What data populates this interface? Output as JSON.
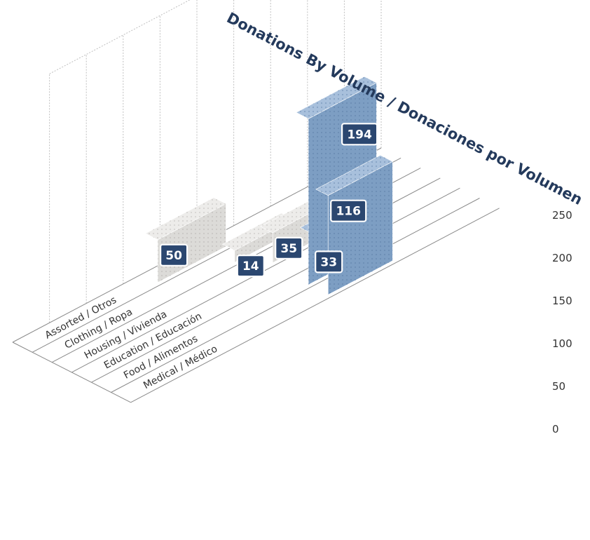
{
  "chart_data": {
    "type": "bar",
    "title": "Donations By Volume / Donaciones por Volumen",
    "categories": [
      "Assorted / Otros",
      "Clothing / Ropa",
      "Housing / Vivienda",
      "Education / Educación",
      "Food / Alimentos",
      "Medical / Médico"
    ],
    "values": [
      50,
      14,
      35,
      33,
      194,
      116
    ],
    "data_labels": [
      "50",
      "14",
      "35",
      "33",
      "194",
      "116"
    ],
    "yticks": [
      "0",
      "50",
      "100",
      "150",
      "200",
      "250"
    ],
    "ylim": [
      0,
      250
    ],
    "grid": true,
    "legend": "none",
    "colors": {
      "gray_front": "#dcdbd8",
      "gray_side": "#a7a5a1",
      "gray_top": "#edecea",
      "blue_front": "#7d9ec3",
      "blue_side": "#2f5b8f",
      "blue_top": "#a8c0dc",
      "label_box": "#2b4770",
      "grid_line": "#bfbfbf",
      "floor_line": "#8a8a8a"
    }
  }
}
